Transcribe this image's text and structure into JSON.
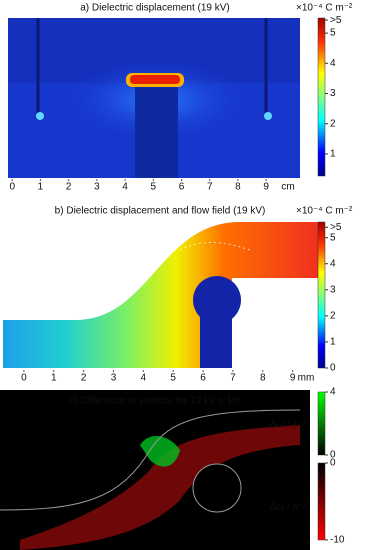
{
  "chart_data": [
    {
      "type": "field",
      "title": "a) Dielectric displacement (19 kV)",
      "xlim": [
        -0.15,
        10.2
      ],
      "xticks": [
        0,
        1,
        2,
        3,
        4,
        5,
        6,
        7,
        8,
        9
      ],
      "xlabel": "cm",
      "colorbars": [
        {
          "label": "×10⁻⁴ C m⁻²",
          "colormap": "jet",
          "clim": [
            0.27,
            5.5
          ],
          "ticks": [
            1,
            2,
            3,
            4,
            5,
            {
              "value": 5.43,
              "label": ">5"
            }
          ]
        }
      ]
    },
    {
      "type": "field",
      "title": "b) Dielectric displacement and flow field (19 kV)",
      "xlim": [
        -0.7,
        9.85
      ],
      "xticks": [
        0,
        1,
        2,
        3,
        4,
        5,
        6,
        7,
        8,
        9
      ],
      "xlabel": "mm",
      "colorbars": [
        {
          "label": "×10⁻⁴ C m⁻²",
          "colormap": "jet",
          "clim": [
            0,
            5.6
          ],
          "ticks": [
            0,
            1,
            2,
            3,
            4,
            5,
            {
              "value": 5.4,
              "label": ">5"
            }
          ]
        }
      ]
    },
    {
      "type": "field",
      "title": "c) Difference in vorticity for 19 kV ± 1%",
      "colorbars": [
        {
          "label": "Δω̄ / s⁻¹",
          "colormap": "green",
          "clim": [
            0,
            4
          ],
          "ticks": [
            0,
            4
          ]
        },
        {
          "label": "Δω̄ / s⁻¹",
          "colormap": "red",
          "clim": [
            -10,
            0
          ],
          "ticks": [
            0,
            -10
          ]
        }
      ]
    }
  ]
}
